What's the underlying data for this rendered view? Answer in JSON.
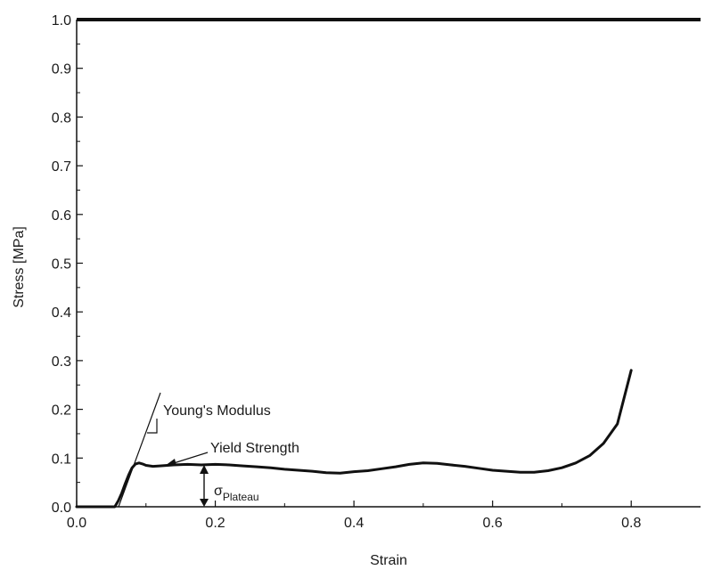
{
  "chart_data": {
    "type": "line",
    "xlabel": "Strain",
    "ylabel": "Stress [MPa]",
    "xlim": [
      0.0,
      0.9
    ],
    "ylim": [
      0.0,
      1.0
    ],
    "xticks": [
      "0.0",
      "0.2",
      "0.4",
      "0.6",
      "0.8"
    ],
    "yticks": [
      "0.0",
      "0.1",
      "0.2",
      "0.3",
      "0.4",
      "0.5",
      "0.6",
      "0.7",
      "0.8",
      "0.9",
      "1.0"
    ],
    "grid": false,
    "series": [
      {
        "color": "#111111",
        "x": [
          0.055,
          0.06,
          0.065,
          0.07,
          0.075,
          0.08,
          0.085,
          0.09,
          0.095,
          0.1,
          0.11,
          0.12,
          0.14,
          0.16,
          0.18,
          0.2,
          0.22,
          0.24,
          0.26,
          0.28,
          0.3,
          0.32,
          0.34,
          0.36,
          0.38,
          0.4,
          0.42,
          0.44,
          0.46,
          0.48,
          0.5,
          0.52,
          0.54,
          0.56,
          0.58,
          0.6,
          0.62,
          0.64,
          0.66,
          0.68,
          0.7,
          0.72,
          0.74,
          0.76,
          0.78,
          0.8
        ],
        "y": [
          0.0,
          0.012,
          0.028,
          0.047,
          0.065,
          0.08,
          0.088,
          0.09,
          0.088,
          0.085,
          0.083,
          0.084,
          0.086,
          0.087,
          0.086,
          0.087,
          0.086,
          0.084,
          0.082,
          0.08,
          0.077,
          0.075,
          0.073,
          0.07,
          0.069,
          0.072,
          0.074,
          0.078,
          0.082,
          0.087,
          0.09,
          0.089,
          0.086,
          0.083,
          0.079,
          0.075,
          0.073,
          0.071,
          0.071,
          0.074,
          0.08,
          0.09,
          0.105,
          0.13,
          0.17,
          0.28
        ]
      }
    ],
    "annotations": {
      "youngs_modulus": "Young's Modulus",
      "yield_strength": "Yield Strength",
      "plateau_main": "σ",
      "plateau_sub": "Plateau"
    }
  }
}
